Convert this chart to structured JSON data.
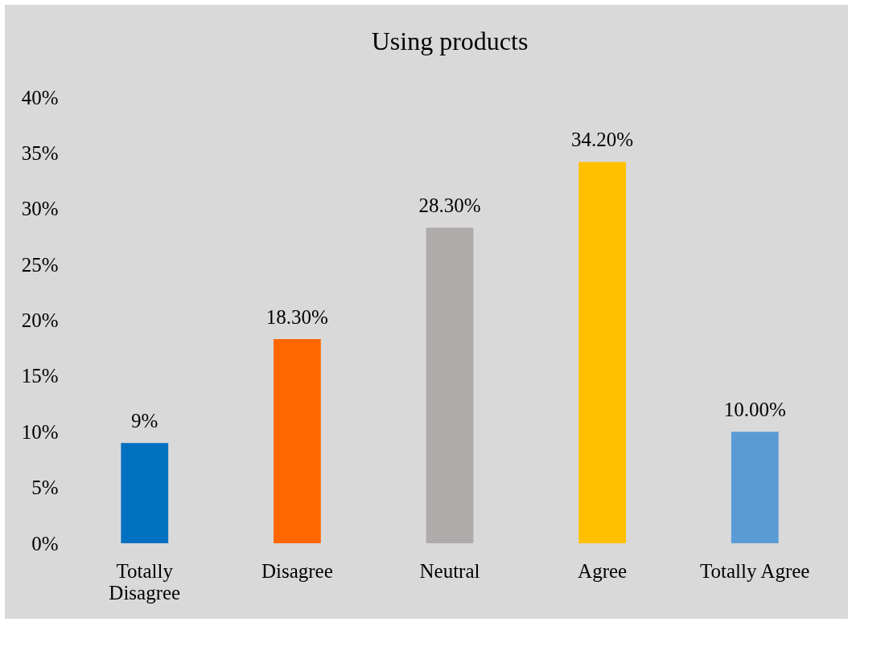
{
  "chart_data": {
    "type": "bar",
    "title": "Using products",
    "categories": [
      "Totally Disagree",
      "Disagree",
      "Neutral",
      "Agree",
      "Totally Agree"
    ],
    "values": [
      9,
      18.3,
      28.3,
      34.2,
      10
    ],
    "colors": [
      "#0070c0",
      "#ff6600",
      "#afabab",
      "#ffc000",
      "#5b9bd5"
    ],
    "value_labels": [
      "9%",
      "18.30%",
      "28.30%",
      "34.20%",
      "10.00%"
    ],
    "ylim": [
      0,
      40
    ],
    "yticks": [
      {
        "value": 0,
        "label": "0%"
      },
      {
        "value": 5,
        "label": "5%"
      },
      {
        "value": 10,
        "label": "10%"
      },
      {
        "value": 15,
        "label": "15%"
      },
      {
        "value": 20,
        "label": "20%"
      },
      {
        "value": 25,
        "label": "25%"
      },
      {
        "value": 30,
        "label": "30%"
      },
      {
        "value": 35,
        "label": "35%"
      },
      {
        "value": 40,
        "label": "40%"
      }
    ]
  }
}
